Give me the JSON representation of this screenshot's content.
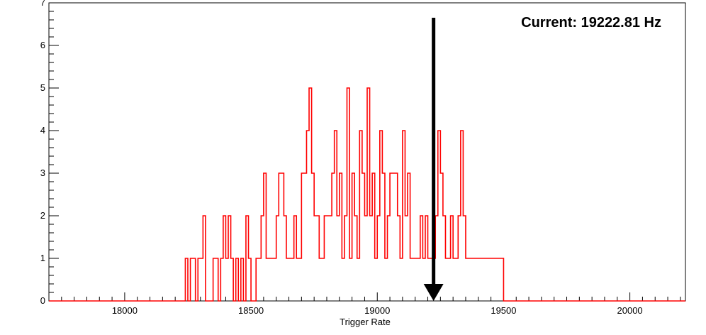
{
  "chart_data": {
    "type": "histogram",
    "title": "",
    "xlabel": "Trigger Rate",
    "ylabel": "",
    "xlim": [
      17700,
      20220
    ],
    "ylim": [
      0,
      7
    ],
    "x_ticks": [
      18000,
      18500,
      19000,
      19500,
      20000
    ],
    "y_ticks": [
      0,
      1,
      2,
      3,
      4,
      5,
      6,
      7
    ],
    "grid": false,
    "legend": "none",
    "bin_width": 10,
    "bins_start": 17700,
    "series": [
      {
        "color": "#ff0000",
        "bins": [
          {
            "x": 18240,
            "y": 1
          },
          {
            "x": 18260,
            "y": 1
          },
          {
            "x": 18270,
            "y": 1
          },
          {
            "x": 18290,
            "y": 1
          },
          {
            "x": 18300,
            "y": 1
          },
          {
            "x": 18310,
            "y": 2
          },
          {
            "x": 18350,
            "y": 1
          },
          {
            "x": 18360,
            "y": 1
          },
          {
            "x": 18380,
            "y": 1
          },
          {
            "x": 18390,
            "y": 2
          },
          {
            "x": 18400,
            "y": 1
          },
          {
            "x": 18410,
            "y": 2
          },
          {
            "x": 18420,
            "y": 1
          },
          {
            "x": 18440,
            "y": 1
          },
          {
            "x": 18460,
            "y": 1
          },
          {
            "x": 18480,
            "y": 2
          },
          {
            "x": 18490,
            "y": 1
          },
          {
            "x": 18520,
            "y": 1
          },
          {
            "x": 18530,
            "y": 1
          },
          {
            "x": 18540,
            "y": 2
          },
          {
            "x": 18550,
            "y": 3
          },
          {
            "x": 18560,
            "y": 1
          },
          {
            "x": 18570,
            "y": 1
          },
          {
            "x": 18580,
            "y": 1
          },
          {
            "x": 18590,
            "y": 1
          },
          {
            "x": 18600,
            "y": 2
          },
          {
            "x": 18610,
            "y": 3
          },
          {
            "x": 18620,
            "y": 3
          },
          {
            "x": 18630,
            "y": 2
          },
          {
            "x": 18640,
            "y": 1
          },
          {
            "x": 18650,
            "y": 1
          },
          {
            "x": 18660,
            "y": 1
          },
          {
            "x": 18670,
            "y": 2
          },
          {
            "x": 18680,
            "y": 1
          },
          {
            "x": 18690,
            "y": 1
          },
          {
            "x": 18700,
            "y": 3
          },
          {
            "x": 18710,
            "y": 3
          },
          {
            "x": 18720,
            "y": 4
          },
          {
            "x": 18730,
            "y": 5
          },
          {
            "x": 18740,
            "y": 3
          },
          {
            "x": 18750,
            "y": 2
          },
          {
            "x": 18760,
            "y": 2
          },
          {
            "x": 18770,
            "y": 1
          },
          {
            "x": 18780,
            "y": 1
          },
          {
            "x": 18790,
            "y": 2
          },
          {
            "x": 18800,
            "y": 2
          },
          {
            "x": 18810,
            "y": 2
          },
          {
            "x": 18820,
            "y": 3
          },
          {
            "x": 18830,
            "y": 4
          },
          {
            "x": 18840,
            "y": 2
          },
          {
            "x": 18850,
            "y": 3
          },
          {
            "x": 18860,
            "y": 1
          },
          {
            "x": 18870,
            "y": 2
          },
          {
            "x": 18880,
            "y": 5
          },
          {
            "x": 18890,
            "y": 1
          },
          {
            "x": 18900,
            "y": 3
          },
          {
            "x": 18910,
            "y": 2
          },
          {
            "x": 18920,
            "y": 1
          },
          {
            "x": 18930,
            "y": 4
          },
          {
            "x": 18940,
            "y": 3
          },
          {
            "x": 18950,
            "y": 2
          },
          {
            "x": 18960,
            "y": 5
          },
          {
            "x": 18970,
            "y": 2
          },
          {
            "x": 18980,
            "y": 3
          },
          {
            "x": 18990,
            "y": 1
          },
          {
            "x": 19000,
            "y": 2
          },
          {
            "x": 19010,
            "y": 4
          },
          {
            "x": 19020,
            "y": 3
          },
          {
            "x": 19030,
            "y": 1
          },
          {
            "x": 19040,
            "y": 2
          },
          {
            "x": 19050,
            "y": 3
          },
          {
            "x": 19060,
            "y": 3
          },
          {
            "x": 19070,
            "y": 3
          },
          {
            "x": 19080,
            "y": 2
          },
          {
            "x": 19090,
            "y": 1
          },
          {
            "x": 19100,
            "y": 4
          },
          {
            "x": 19110,
            "y": 2
          },
          {
            "x": 19120,
            "y": 3
          },
          {
            "x": 19130,
            "y": 1
          },
          {
            "x": 19140,
            "y": 1
          },
          {
            "x": 19150,
            "y": 1
          },
          {
            "x": 19160,
            "y": 1
          },
          {
            "x": 19170,
            "y": 2
          },
          {
            "x": 19180,
            "y": 1
          },
          {
            "x": 19190,
            "y": 2
          },
          {
            "x": 19200,
            "y": 1
          },
          {
            "x": 19210,
            "y": 1
          },
          {
            "x": 19220,
            "y": 1
          },
          {
            "x": 19230,
            "y": 2
          },
          {
            "x": 19240,
            "y": 4
          },
          {
            "x": 19250,
            "y": 3
          },
          {
            "x": 19260,
            "y": 2
          },
          {
            "x": 19270,
            "y": 1
          },
          {
            "x": 19280,
            "y": 1
          },
          {
            "x": 19290,
            "y": 2
          },
          {
            "x": 19300,
            "y": 1
          },
          {
            "x": 19310,
            "y": 1
          },
          {
            "x": 19320,
            "y": 2
          },
          {
            "x": 19330,
            "y": 4
          },
          {
            "x": 19340,
            "y": 2
          },
          {
            "x": 19350,
            "y": 1
          },
          {
            "x": 19360,
            "y": 1
          },
          {
            "x": 19370,
            "y": 1
          },
          {
            "x": 19380,
            "y": 1
          },
          {
            "x": 19390,
            "y": 1
          },
          {
            "x": 19400,
            "y": 1
          },
          {
            "x": 19410,
            "y": 1
          },
          {
            "x": 19420,
            "y": 1
          },
          {
            "x": 19430,
            "y": 1
          },
          {
            "x": 19440,
            "y": 1
          },
          {
            "x": 19450,
            "y": 1
          },
          {
            "x": 19460,
            "y": 1
          },
          {
            "x": 19470,
            "y": 1
          },
          {
            "x": 19480,
            "y": 1
          },
          {
            "x": 19490,
            "y": 1
          }
        ]
      }
    ],
    "annotations": [
      {
        "text": "Current: 19222.81 Hz",
        "arrow_x": 19222.81,
        "arrow_from_y": 6.65,
        "arrow_to_y": 0
      }
    ]
  }
}
